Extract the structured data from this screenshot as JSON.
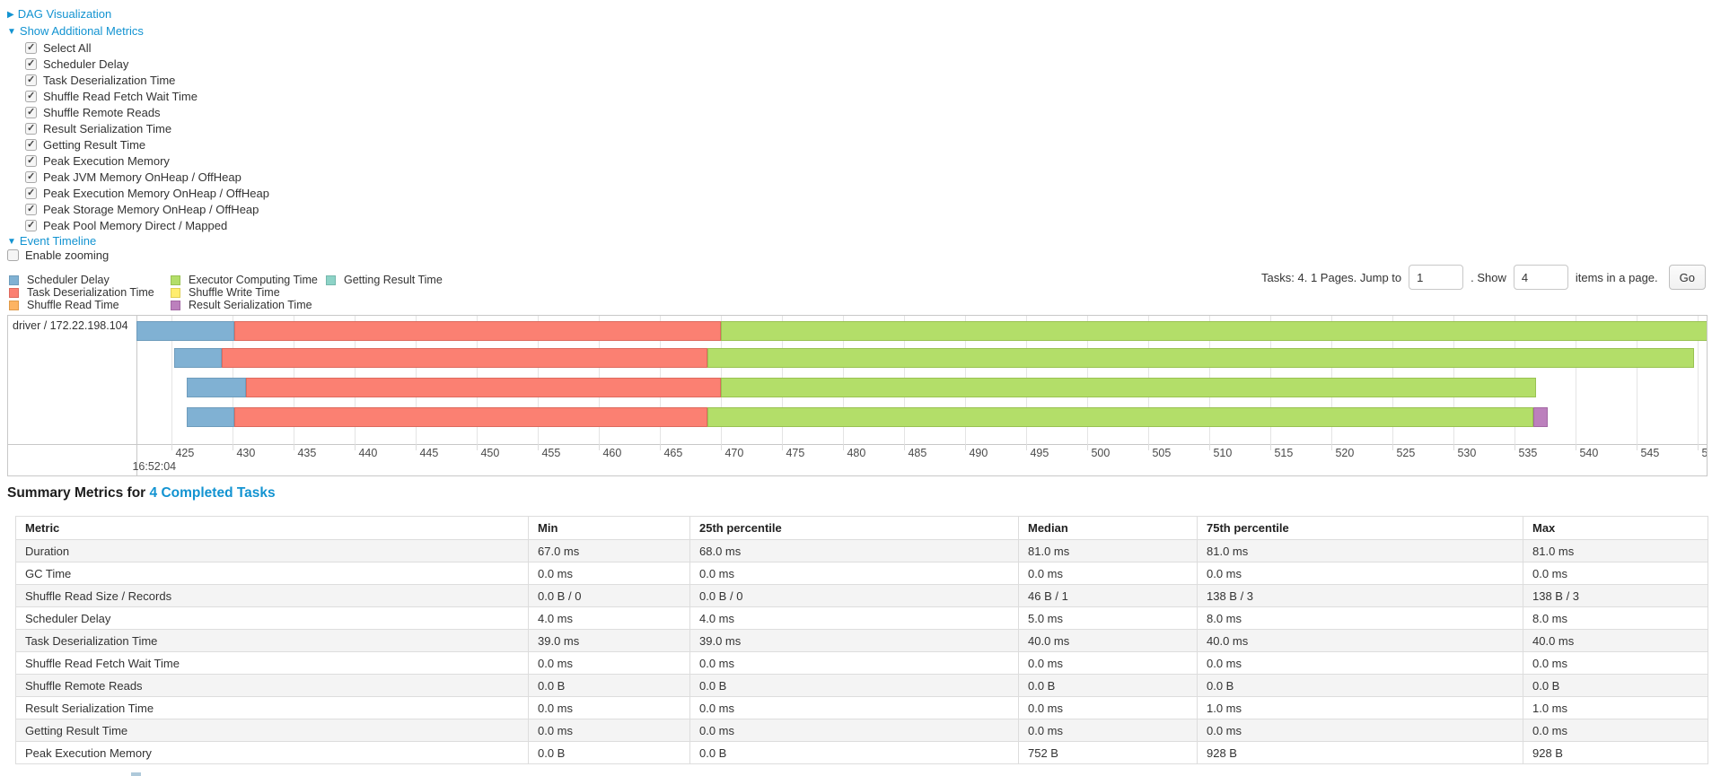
{
  "colors": {
    "link": "#1293d1",
    "palette": {
      "scheduler_delay": {
        "fill": "#80B1D3",
        "border": "#6e9cbc"
      },
      "task_deserialization": {
        "fill": "#FB8072",
        "border": "#dd6a5e"
      },
      "shuffle_read": {
        "fill": "#FDB462",
        "border": "#e09a49"
      },
      "executor_computing": {
        "fill": "#B3DE69",
        "border": "#99c252"
      },
      "shuffle_write": {
        "fill": "#FFED6F",
        "border": "#e0cf55"
      },
      "result_serialization": {
        "fill": "#BC80BD",
        "border": "#a368a4"
      },
      "getting_result": {
        "fill": "#8DD3C7",
        "border": "#74b8ac"
      }
    }
  },
  "controls": {
    "dag_label": "DAG Visualization",
    "metrics_toggle_label": "Show Additional Metrics",
    "metric_checkboxes": [
      "Select All",
      "Scheduler Delay",
      "Task Deserialization Time",
      "Shuffle Read Fetch Wait Time",
      "Shuffle Remote Reads",
      "Result Serialization Time",
      "Getting Result Time",
      "Peak Execution Memory",
      "Peak JVM Memory OnHeap / OffHeap",
      "Peak Execution Memory OnHeap / OffHeap",
      "Peak Storage Memory OnHeap / OffHeap",
      "Peak Pool Memory Direct / Mapped"
    ],
    "event_timeline_label": "Event Timeline",
    "enable_zooming_label": "Enable zooming",
    "enable_zooming_checked": false
  },
  "legend": {
    "columns": [
      [
        {
          "label": "Scheduler Delay",
          "key": "scheduler_delay"
        },
        {
          "label": "Task Deserialization Time",
          "key": "task_deserialization"
        },
        {
          "label": "Shuffle Read Time",
          "key": "shuffle_read"
        }
      ],
      [
        {
          "label": "Executor Computing Time",
          "key": "executor_computing"
        },
        {
          "label": "Shuffle Write Time",
          "key": "shuffle_write"
        },
        {
          "label": "Result Serialization Time",
          "key": "result_serialization"
        }
      ],
      [
        {
          "label": "Getting Result Time",
          "key": "getting_result"
        }
      ]
    ]
  },
  "pagination": {
    "tasks_text": "Tasks: 4. 1 Pages. Jump to",
    "jump_value": "1",
    "show_label": ". Show",
    "show_value": "4",
    "items_text": "items in a page.",
    "go_label": "Go"
  },
  "chart_data": {
    "type": "timeline-gantt",
    "row_label": "driver / 172.22.198.104",
    "axis": {
      "unit": "ms",
      "domain_min": 422.1,
      "domain_max": 550.7,
      "tick_start": 425,
      "tick_end": 550,
      "tick_step": 5,
      "major_time_label": "16:52:04",
      "grid": true
    },
    "tasks": [
      {
        "start": 422.1,
        "segments": [
          {
            "key": "scheduler_delay",
            "ms": 8.0
          },
          {
            "key": "task_deserialization",
            "ms": 39.9
          },
          {
            "key": "executor_computing",
            "ms": 80.8
          }
        ]
      },
      {
        "start": 425.2,
        "segments": [
          {
            "key": "scheduler_delay",
            "ms": 3.9
          },
          {
            "key": "task_deserialization",
            "ms": 39.8
          },
          {
            "key": "executor_computing",
            "ms": 80.8
          }
        ]
      },
      {
        "start": 426.2,
        "segments": [
          {
            "key": "scheduler_delay",
            "ms": 4.9
          },
          {
            "key": "task_deserialization",
            "ms": 38.9
          },
          {
            "key": "executor_computing",
            "ms": 66.7
          }
        ]
      },
      {
        "start": 426.2,
        "segments": [
          {
            "key": "scheduler_delay",
            "ms": 3.9
          },
          {
            "key": "task_deserialization",
            "ms": 38.8
          },
          {
            "key": "executor_computing",
            "ms": 67.6
          },
          {
            "key": "result_serialization",
            "ms": 1.2
          }
        ]
      }
    ]
  },
  "summary": {
    "title_prefix": "Summary Metrics for",
    "title_link": "4 Completed Tasks",
    "table": {
      "headers": [
        "Metric",
        "Min",
        "25th percentile",
        "Median",
        "75th percentile",
        "Max"
      ],
      "rows": [
        [
          "Duration",
          "67.0 ms",
          "68.0 ms",
          "81.0 ms",
          "81.0 ms",
          "81.0 ms"
        ],
        [
          "GC Time",
          "0.0 ms",
          "0.0 ms",
          "0.0 ms",
          "0.0 ms",
          "0.0 ms"
        ],
        [
          "Shuffle Read Size / Records",
          "0.0 B / 0",
          "0.0 B / 0",
          "46 B / 1",
          "138 B / 3",
          "138 B / 3"
        ],
        [
          "Scheduler Delay",
          "4.0 ms",
          "4.0 ms",
          "5.0 ms",
          "8.0 ms",
          "8.0 ms"
        ],
        [
          "Task Deserialization Time",
          "39.0 ms",
          "39.0 ms",
          "40.0 ms",
          "40.0 ms",
          "40.0 ms"
        ],
        [
          "Shuffle Read Fetch Wait Time",
          "0.0 ms",
          "0.0 ms",
          "0.0 ms",
          "0.0 ms",
          "0.0 ms"
        ],
        [
          "Shuffle Remote Reads",
          "0.0 B",
          "0.0 B",
          "0.0 B",
          "0.0 B",
          "0.0 B"
        ],
        [
          "Result Serialization Time",
          "0.0 ms",
          "0.0 ms",
          "0.0 ms",
          "1.0 ms",
          "1.0 ms"
        ],
        [
          "Getting Result Time",
          "0.0 ms",
          "0.0 ms",
          "0.0 ms",
          "0.0 ms",
          "0.0 ms"
        ],
        [
          "Peak Execution Memory",
          "0.0 B",
          "0.0 B",
          "752 B",
          "928 B",
          "928 B"
        ]
      ]
    }
  }
}
